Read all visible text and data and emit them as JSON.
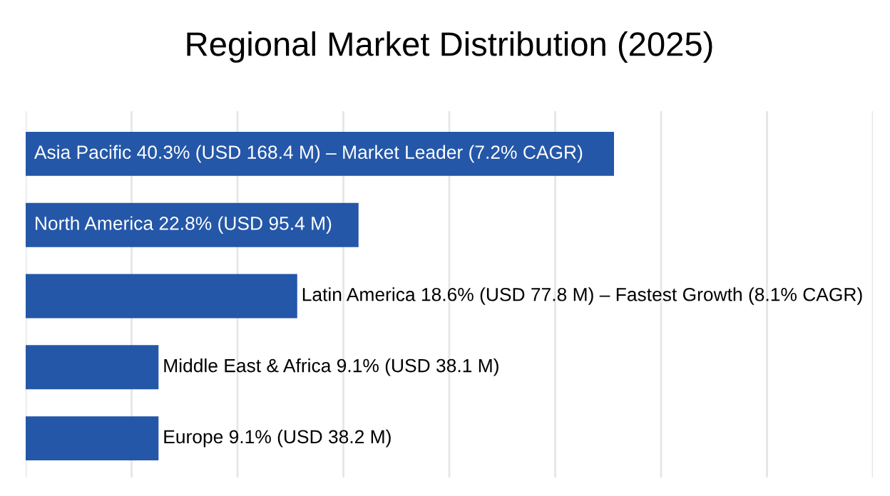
{
  "chart_data": {
    "type": "bar",
    "orientation": "horizontal",
    "title": "Regional Market Distribution (2025)",
    "categories": [
      null,
      null,
      null,
      null,
      null
    ],
    "values": [
      40.3,
      22.8,
      18.6,
      9.1,
      9.1
    ],
    "value_labels": [
      "Asia Pacific 40.3% (USD 168.4 M) – Market Leader (7.2% CAGR)",
      "North America 22.8% (USD 95.4 M)",
      "Latin America 18.6% (USD 77.8 M) – Fastest Growth (8.1% CAGR)",
      "Middle East & Africa 9.1% (USD 38.1 M)",
      "Europe 9.1% (USD 38.2 M)"
    ],
    "color": "#2457a8",
    "grid": "x"
  }
}
